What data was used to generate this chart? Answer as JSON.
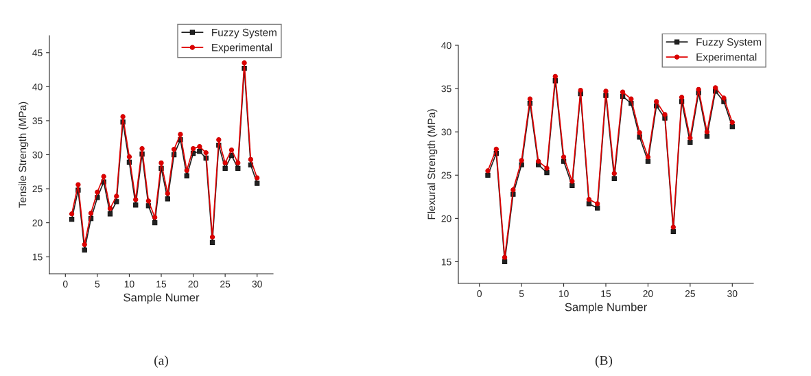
{
  "chart_data": [
    {
      "type": "line",
      "xlabel": "Sample Numer",
      "ylabel": "Tensile Strength (MPa)",
      "x": [
        1,
        2,
        3,
        4,
        5,
        6,
        7,
        8,
        9,
        10,
        11,
        12,
        13,
        14,
        15,
        16,
        17,
        18,
        19,
        20,
        21,
        22,
        23,
        24,
        25,
        26,
        27,
        28,
        29,
        30
      ],
      "xlim": [
        -2.5,
        32.5
      ],
      "xticks": [
        0,
        5,
        10,
        15,
        20,
        25,
        30
      ],
      "ylim": [
        12.5,
        47.5
      ],
      "yticks": [
        15,
        20,
        25,
        30,
        35,
        40,
        45
      ],
      "legend": "top right",
      "grid": false,
      "annotations": [
        "(a)"
      ],
      "series": [
        {
          "name": "Fuzzy System",
          "color": "#222222",
          "marker": "square",
          "values": [
            20.5,
            24.8,
            16.0,
            20.6,
            23.7,
            26.0,
            21.3,
            23.1,
            34.8,
            28.9,
            22.6,
            30.1,
            22.5,
            20.0,
            28.0,
            23.5,
            30.0,
            32.2,
            26.9,
            30.2,
            30.5,
            29.5,
            17.1,
            31.4,
            28.0,
            29.9,
            28.0,
            42.7,
            28.5,
            25.8
          ]
        },
        {
          "name": "Experimental",
          "color": "#e00000",
          "marker": "circle",
          "values": [
            21.3,
            25.6,
            16.8,
            21.4,
            24.5,
            26.8,
            22.1,
            23.9,
            35.6,
            29.7,
            23.4,
            30.9,
            23.2,
            20.8,
            28.8,
            24.3,
            30.8,
            33.0,
            27.7,
            30.9,
            31.2,
            30.3,
            17.9,
            32.2,
            28.8,
            30.7,
            28.8,
            43.5,
            29.3,
            26.6
          ]
        }
      ]
    },
    {
      "type": "line",
      "xlabel": "Sample Number",
      "ylabel": "Flexural Strength (MPa)",
      "x": [
        1,
        2,
        3,
        4,
        5,
        6,
        7,
        8,
        9,
        10,
        11,
        12,
        13,
        14,
        15,
        16,
        17,
        18,
        19,
        20,
        21,
        22,
        23,
        24,
        25,
        26,
        27,
        28,
        29,
        30
      ],
      "xlim": [
        -2.5,
        32.5
      ],
      "xticks": [
        0,
        5,
        10,
        15,
        20,
        25,
        30
      ],
      "ylim": [
        12.5,
        40
      ],
      "yticks": [
        15,
        20,
        25,
        30,
        35,
        40
      ],
      "legend": "top right",
      "grid": false,
      "annotations": [
        "(B)"
      ],
      "series": [
        {
          "name": "Fuzzy System",
          "color": "#222222",
          "marker": "square",
          "values": [
            25.0,
            27.5,
            15.0,
            22.8,
            26.2,
            33.3,
            26.2,
            25.3,
            35.9,
            26.6,
            23.8,
            34.4,
            21.7,
            21.2,
            34.2,
            24.6,
            34.1,
            33.3,
            29.4,
            26.6,
            33.0,
            31.6,
            18.5,
            33.5,
            28.8,
            34.5,
            29.5,
            34.7,
            33.5,
            30.6
          ]
        },
        {
          "name": "Experimental",
          "color": "#e00000",
          "marker": "circle",
          "values": [
            25.5,
            28.0,
            15.5,
            23.3,
            26.7,
            33.8,
            26.6,
            25.8,
            36.4,
            27.1,
            24.3,
            34.8,
            22.2,
            21.7,
            34.7,
            25.2,
            34.6,
            33.8,
            29.9,
            27.1,
            33.5,
            32.0,
            19.0,
            34.0,
            29.3,
            34.9,
            30.0,
            35.1,
            33.9,
            31.1
          ]
        }
      ]
    }
  ]
}
